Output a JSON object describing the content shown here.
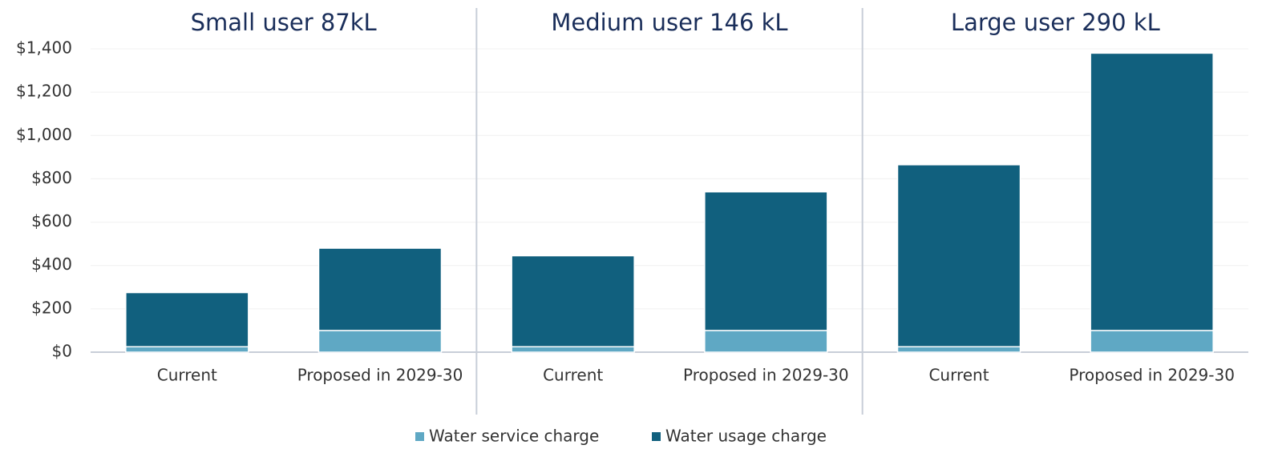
{
  "chart_data": {
    "type": "stacked_bar",
    "groups": [
      "Small user 87kL",
      "Medium user 146 kL",
      "Large user 290 kL"
    ],
    "categories": [
      "Current",
      "Proposed in 2029-30",
      "Current",
      "Proposed in 2029-30",
      "Current",
      "Proposed in 2029-30"
    ],
    "series": [
      {
        "name": "Water service charge",
        "color": "#5fa8c4",
        "values": [
          25,
          100,
          25,
          100,
          25,
          100
        ]
      },
      {
        "name": "Water usage charge",
        "color": "#11607e",
        "values": [
          250,
          380,
          420,
          640,
          840,
          1280
        ]
      }
    ],
    "ylim": [
      0,
      1400
    ],
    "yticks": [
      {
        "value": 0,
        "label": "$0"
      },
      {
        "value": 200,
        "label": "$200"
      },
      {
        "value": 400,
        "label": "$400"
      },
      {
        "value": 600,
        "label": "$600"
      },
      {
        "value": 800,
        "label": "$800"
      },
      {
        "value": 1000,
        "label": "$1,000"
      },
      {
        "value": 1200,
        "label": "$1,200"
      },
      {
        "value": 1400,
        "label": "$1,400"
      }
    ],
    "grid": true,
    "legend": "bottom"
  }
}
